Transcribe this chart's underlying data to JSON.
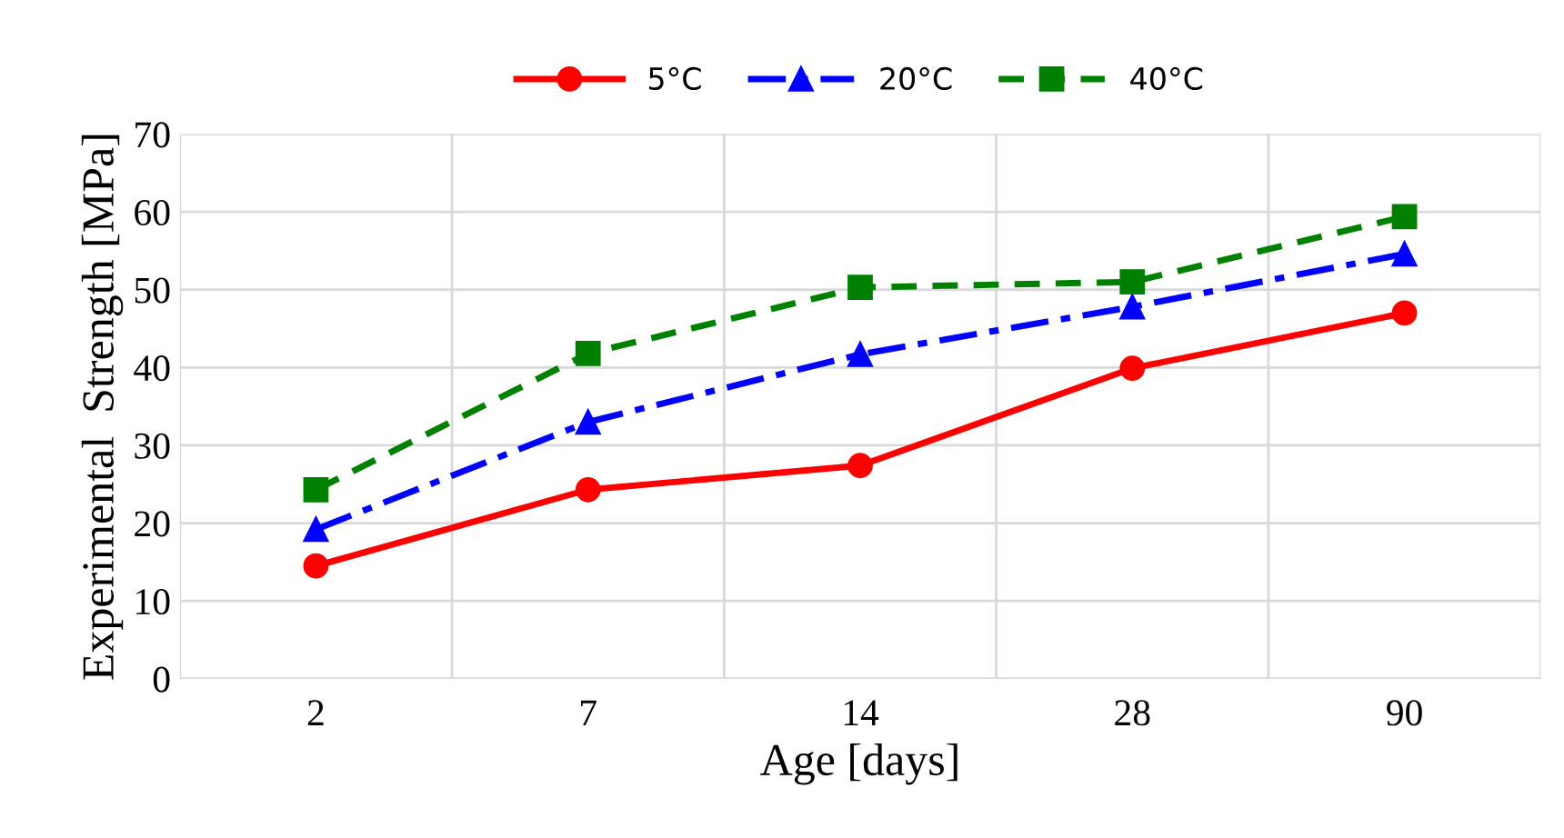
{
  "chart_data": {
    "type": "line",
    "xlabel": "Age [days]",
    "ylabel": "Experimental  Strength [MPa]",
    "categories": [
      "2",
      "7",
      "14",
      "28",
      "90"
    ],
    "series": [
      {
        "name": "5°C",
        "color": "#ff0000",
        "marker": "circle",
        "line_style": "solid",
        "values": [
          14.5,
          24.3,
          27.4,
          39.9,
          47.0
        ]
      },
      {
        "name": "20°C",
        "color": "#0000ff",
        "marker": "triangle",
        "line_style": "dashdot",
        "values": [
          19.2,
          33.0,
          41.7,
          47.8,
          54.6
        ]
      },
      {
        "name": "40°C",
        "color": "#008000",
        "marker": "square",
        "line_style": "dashed",
        "values": [
          24.3,
          41.8,
          50.3,
          51.0,
          59.4
        ]
      }
    ],
    "ylim": [
      0,
      70
    ],
    "yticks": [
      0,
      10,
      20,
      30,
      40,
      50,
      60,
      70
    ],
    "grid": true,
    "legend": "top"
  }
}
